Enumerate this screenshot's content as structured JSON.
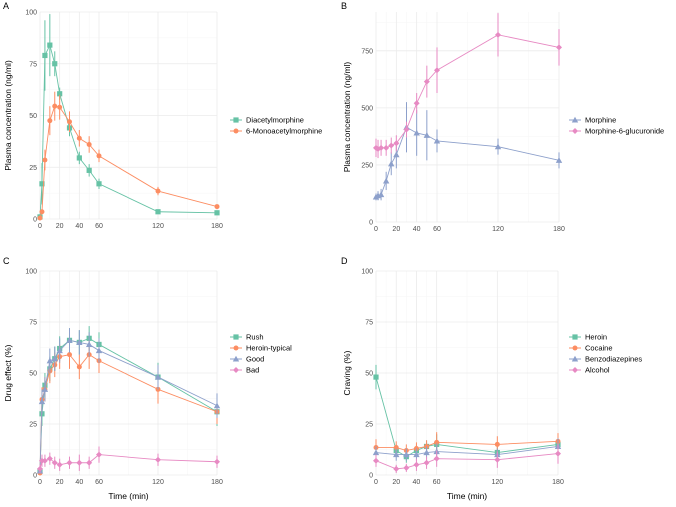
{
  "figure": {
    "panel_labels": [
      "A",
      "B",
      "C",
      "D"
    ]
  },
  "chart_data": [
    {
      "panel": "A",
      "type": "line",
      "xlabel": "",
      "ylabel": "Plasma concentration (ng/ml)",
      "xlim": [
        0,
        180
      ],
      "ylim": [
        0,
        100
      ],
      "xticks": [
        0,
        20,
        40,
        60,
        120,
        180
      ],
      "yticks": [
        0,
        25,
        50,
        75,
        100
      ],
      "xminor": [
        10,
        30,
        50,
        90,
        150
      ],
      "yminor": [
        12.5,
        37.5,
        62.5,
        87.5
      ],
      "legend_position": "right",
      "series": [
        {
          "name": "Diacetylmorphine",
          "color": "#66c2a5",
          "marker": "square",
          "x": [
            0,
            2,
            5,
            10,
            15,
            20,
            30,
            40,
            50,
            60,
            120,
            180
          ],
          "y": [
            1,
            17,
            79,
            84,
            75,
            60.5,
            44,
            29.5,
            23.5,
            17,
            3.5,
            3
          ],
          "err": [
            0.5,
            10,
            17,
            15,
            6,
            3,
            4,
            3,
            3,
            2.5,
            0.8,
            0.8
          ]
        },
        {
          "name": "6-Monoacetylmorphine",
          "color": "#fc8d62",
          "marker": "circle",
          "x": [
            0,
            2,
            5,
            10,
            15,
            20,
            30,
            40,
            50,
            60,
            120,
            180
          ],
          "y": [
            0.5,
            3.5,
            28.5,
            47.5,
            54.5,
            54,
            47,
            39,
            36,
            30.5,
            13.5,
            6
          ],
          "err": [
            0.3,
            1,
            5,
            7,
            7,
            6,
            5,
            4,
            4,
            3,
            2,
            1
          ]
        }
      ]
    },
    {
      "panel": "B",
      "type": "line",
      "xlabel": "",
      "ylabel": "Plasma concentration (ng/ml)",
      "xlim": [
        0,
        180
      ],
      "ylim": [
        0,
        920
      ],
      "xticks": [
        0,
        20,
        40,
        60,
        120,
        180
      ],
      "yticks": [
        0,
        250,
        500,
        750
      ],
      "xminor": [
        10,
        30,
        50,
        90,
        150
      ],
      "yminor": [
        125,
        375,
        625,
        875
      ],
      "legend_position": "right",
      "series": [
        {
          "name": "Morphine",
          "color": "#8da0cb",
          "marker": "triangle",
          "x": [
            0,
            2,
            5,
            10,
            15,
            20,
            30,
            40,
            50,
            60,
            120,
            180
          ],
          "y": [
            110,
            115,
            120,
            180,
            255,
            295,
            415,
            390,
            380,
            355,
            330,
            270
          ],
          "err": [
            15,
            20,
            25,
            40,
            50,
            60,
            110,
            100,
            110,
            50,
            35,
            35
          ]
        },
        {
          "name": "Morphine-6-glucuronide",
          "color": "#e78ac3",
          "marker": "diamond",
          "x": [
            0,
            2,
            5,
            10,
            15,
            20,
            30,
            40,
            50,
            60,
            120,
            180
          ],
          "y": [
            325,
            320,
            325,
            325,
            335,
            345,
            405,
            520,
            615,
            665,
            820,
            765
          ],
          "err": [
            40,
            40,
            35,
            35,
            35,
            35,
            35,
            45,
            70,
            100,
            95,
            80
          ]
        }
      ]
    },
    {
      "panel": "C",
      "type": "line",
      "xlabel": "Time (min)",
      "ylabel": "Drug effect (%)",
      "xlim": [
        0,
        180
      ],
      "ylim": [
        0,
        100
      ],
      "xticks": [
        0,
        20,
        40,
        60,
        120,
        180
      ],
      "yticks": [
        0,
        25,
        50,
        75,
        100
      ],
      "xminor": [
        10,
        30,
        50,
        90,
        150
      ],
      "yminor": [
        12.5,
        37.5,
        62.5,
        87.5
      ],
      "legend_position": "right",
      "series": [
        {
          "name": "Rush",
          "color": "#66c2a5",
          "marker": "square",
          "x": [
            0,
            2,
            5,
            10,
            15,
            20,
            30,
            40,
            50,
            60,
            120,
            180
          ],
          "y": [
            2,
            30,
            44,
            52,
            57,
            62,
            66,
            65,
            67,
            64,
            48,
            31
          ],
          "err": [
            1,
            6,
            6,
            6,
            6,
            6,
            6,
            6,
            6,
            6,
            7,
            7
          ]
        },
        {
          "name": "Heroin-typical",
          "color": "#fc8d62",
          "marker": "circle",
          "x": [
            0,
            2,
            5,
            10,
            15,
            20,
            30,
            40,
            50,
            60,
            120,
            180
          ],
          "y": [
            1,
            37,
            42,
            51,
            54,
            58,
            59,
            53,
            59,
            56,
            42,
            31
          ],
          "err": [
            1,
            6,
            6,
            6,
            6,
            6,
            7,
            6,
            7,
            6,
            7,
            6
          ]
        },
        {
          "name": "Good",
          "color": "#8da0cb",
          "marker": "triangle",
          "x": [
            0,
            2,
            5,
            10,
            15,
            20,
            30,
            40,
            50,
            60,
            120,
            180
          ],
          "y": [
            2,
            36,
            42,
            56,
            57,
            61,
            66,
            65,
            64,
            61,
            48,
            34
          ],
          "err": [
            1,
            6,
            6,
            6,
            6,
            6,
            6,
            6,
            6,
            6,
            6,
            6
          ]
        },
        {
          "name": "Bad",
          "color": "#e78ac3",
          "marker": "diamond",
          "x": [
            0,
            2,
            5,
            10,
            15,
            20,
            30,
            40,
            50,
            60,
            120,
            180
          ],
          "y": [
            3,
            7,
            7,
            8,
            6,
            5,
            6,
            6,
            6,
            10,
            7.5,
            6.5
          ],
          "err": [
            2,
            3,
            3,
            3,
            3,
            3,
            3,
            4,
            3,
            4,
            3,
            3
          ]
        }
      ]
    },
    {
      "panel": "D",
      "type": "line",
      "xlabel": "Time (min)",
      "ylabel": "Craving (%)",
      "xlim": [
        0,
        180
      ],
      "ylim": [
        0,
        100
      ],
      "xticks": [
        0,
        20,
        40,
        60,
        120,
        180
      ],
      "yticks": [
        0,
        25,
        50,
        75,
        100
      ],
      "xminor": [
        10,
        30,
        50,
        90,
        150
      ],
      "yminor": [
        12.5,
        37.5,
        62.5,
        87.5
      ],
      "legend_position": "right",
      "series": [
        {
          "name": "Heroin",
          "color": "#66c2a5",
          "marker": "square",
          "x": [
            0,
            20,
            30,
            40,
            50,
            60,
            120,
            180
          ],
          "y": [
            48,
            12,
            9,
            12,
            14,
            15,
            11,
            15
          ],
          "err": [
            6,
            3,
            3,
            3,
            3,
            5,
            3,
            4
          ]
        },
        {
          "name": "Cocaine",
          "color": "#fc8d62",
          "marker": "circle",
          "x": [
            0,
            20,
            30,
            40,
            50,
            60,
            120,
            180
          ],
          "y": [
            13.5,
            13.5,
            12,
            13,
            14,
            16,
            15,
            16.5
          ],
          "err": [
            4,
            3,
            3,
            3,
            3,
            5,
            4,
            4
          ]
        },
        {
          "name": "Benzodiazepines",
          "color": "#8da0cb",
          "marker": "triangle",
          "x": [
            0,
            20,
            30,
            40,
            50,
            60,
            120,
            180
          ],
          "y": [
            11,
            10,
            10,
            10,
            11,
            11.5,
            10,
            14
          ],
          "err": [
            3,
            3,
            3,
            3,
            3,
            4,
            3,
            4
          ]
        },
        {
          "name": "Alcohol",
          "color": "#e78ac3",
          "marker": "diamond",
          "x": [
            0,
            20,
            30,
            40,
            50,
            60,
            120,
            180
          ],
          "y": [
            7,
            3,
            3.5,
            5,
            6,
            8,
            7.5,
            10.5
          ],
          "err": [
            3,
            2,
            2,
            3,
            3,
            4,
            4,
            5
          ]
        }
      ]
    }
  ]
}
